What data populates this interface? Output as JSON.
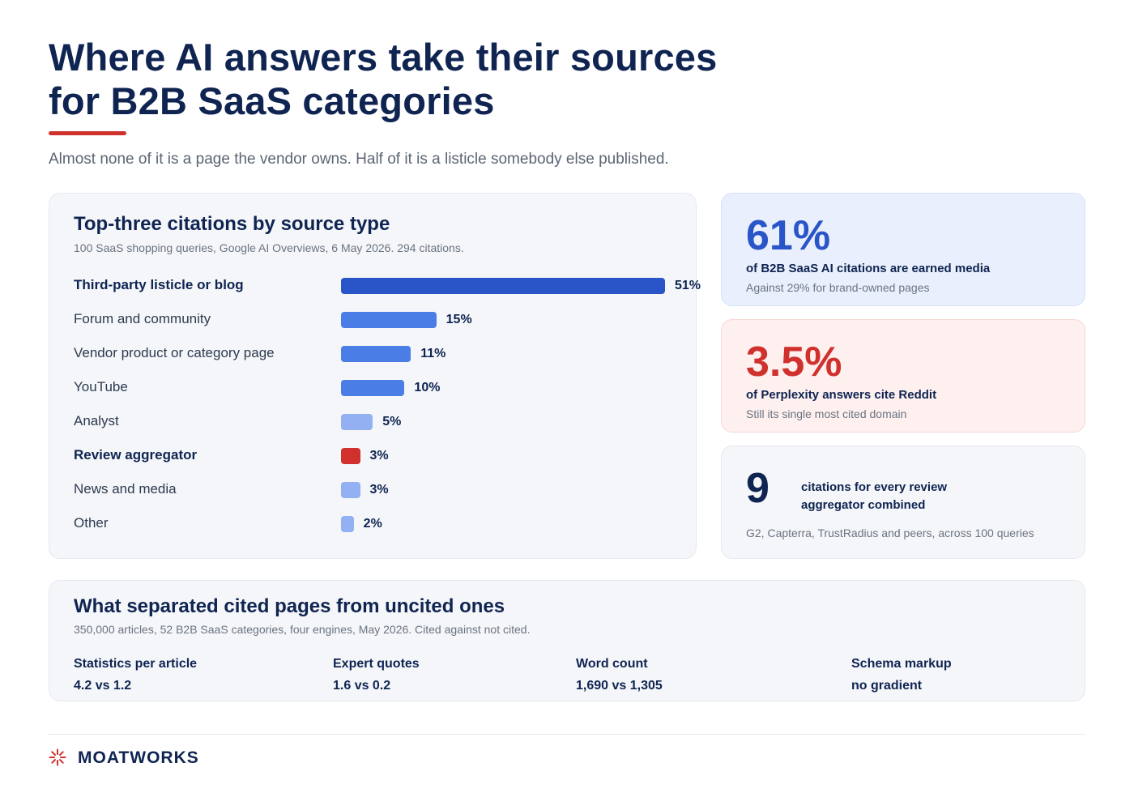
{
  "header": {
    "title_line1": "Where AI answers take their sources",
    "title_line2": "for B2B SaaS categories",
    "subtitle": "Almost none of it is a page the vendor owns. Half of it is a listicle somebody else published."
  },
  "chart_card": {
    "title": "Top-three citations by source type",
    "note": "100 SaaS shopping queries, Google AI Overviews, 6 May 2026. 294 citations."
  },
  "chart_data": {
    "type": "bar",
    "orientation": "horizontal",
    "categories": [
      "Third-party listicle or blog",
      "Forum and community",
      "Vendor product or category page",
      "YouTube",
      "Analyst",
      "Review aggregator",
      "News and media",
      "Other"
    ],
    "values": [
      51,
      15,
      11,
      10,
      5,
      3,
      3,
      2
    ],
    "value_labels": [
      "51%",
      "15%",
      "11%",
      "10%",
      "5%",
      "3%",
      "3%",
      "2%"
    ],
    "bold_categories": [
      "Third-party listicle or blog",
      "Review aggregator"
    ],
    "bar_colors": [
      "#2a55c8",
      "#4a7de6",
      "#4a7de6",
      "#4a7de6",
      "#93b0f3",
      "#d0312d",
      "#93b0f3",
      "#93b0f3"
    ],
    "title": "Top-three citations by source type",
    "xlabel": "",
    "ylabel": "",
    "xlim": [
      0,
      51
    ],
    "grid": false,
    "legend": "none"
  },
  "stats": {
    "earned": {
      "value": "61%",
      "line": "of B2B SaaS AI citations are earned media",
      "sub": "Against 29% for brand-owned pages",
      "color": "#2a55c8"
    },
    "reddit": {
      "value": "3.5%",
      "line": "of Perplexity answers cite Reddit",
      "sub": "Still its single most cited domain",
      "color": "#d0312d"
    },
    "ratio": {
      "value": "9",
      "line1": "citations for every review",
      "line2": "aggregator combined",
      "sub": "G2, Capterra, TrustRadius and peers, across 100 queries",
      "color": "#0f2451"
    }
  },
  "bottom_card": {
    "title": "What separated cited pages from uncited ones",
    "note": "350,000 articles, 52 B2B SaaS categories, four engines, May 2026. Cited against not cited.",
    "metrics": [
      {
        "label": "Statistics per article",
        "value": "4.2 vs 1.2"
      },
      {
        "label": "Expert quotes",
        "value": "1.6 vs 0.2"
      },
      {
        "label": "Word count",
        "value": "1,690 vs 1,305"
      },
      {
        "label": "Schema markup",
        "value": "no gradient"
      }
    ]
  },
  "footer": {
    "brand": "MOATWORKS",
    "brand_icon": "starburst-icon",
    "accent": "#d0312d"
  }
}
